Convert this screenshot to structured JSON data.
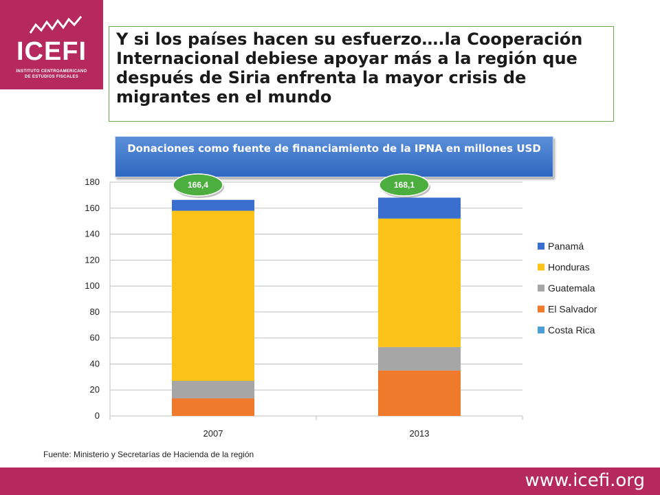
{
  "logo": {
    "name": "ICEFI",
    "subtitle_line1": "INSTITUTO CENTROAMERICANO",
    "subtitle_line2": "DE ESTUDIOS FISCALES"
  },
  "slide_title": "Y si los países hacen su esfuerzo….la Cooperación Internacional debiese apoyar más a la región que después de Siria enfrenta la mayor crisis de migrantes en el mundo",
  "source_note": "Fuente: Ministerio y Secretarías de Hacienda de la región",
  "footer": {
    "url": "www.icefi.org"
  },
  "colors": {
    "brand": "#b5295e",
    "title_border": "#6aa84f",
    "Costa Rica": "#4e9fd8",
    "El Salvador": "#f07a2c",
    "Guatemala": "#a6a6a6",
    "Honduras": "#fbc21a",
    "Panamá": "#3a6fcf",
    "total_bubble": "#4cae3f"
  },
  "chart_data": {
    "type": "bar",
    "stacked": true,
    "title": "Donaciones como fuente de financiamiento  de la IPNA en millones USD",
    "categories": [
      "2007",
      "2013"
    ],
    "series": [
      {
        "name": "Costa Rica",
        "values": [
          0,
          0
        ]
      },
      {
        "name": "El Salvador",
        "values": [
          13.5,
          35
        ]
      },
      {
        "name": "Guatemala",
        "values": [
          13.5,
          18
        ]
      },
      {
        "name": "Honduras",
        "values": [
          131,
          99
        ]
      },
      {
        "name": "Panamá",
        "values": [
          8.4,
          16.1
        ]
      }
    ],
    "totals": [
      "166,4",
      "168,1"
    ],
    "ylim": [
      0,
      180
    ],
    "yticks": [
      0,
      20,
      40,
      60,
      80,
      100,
      120,
      140,
      160,
      180
    ],
    "grid": true,
    "legend_position": "right",
    "legend_order": [
      "Panamá",
      "Honduras",
      "Guatemala",
      "El Salvador",
      "Costa Rica"
    ],
    "xlabel": "",
    "ylabel": ""
  }
}
